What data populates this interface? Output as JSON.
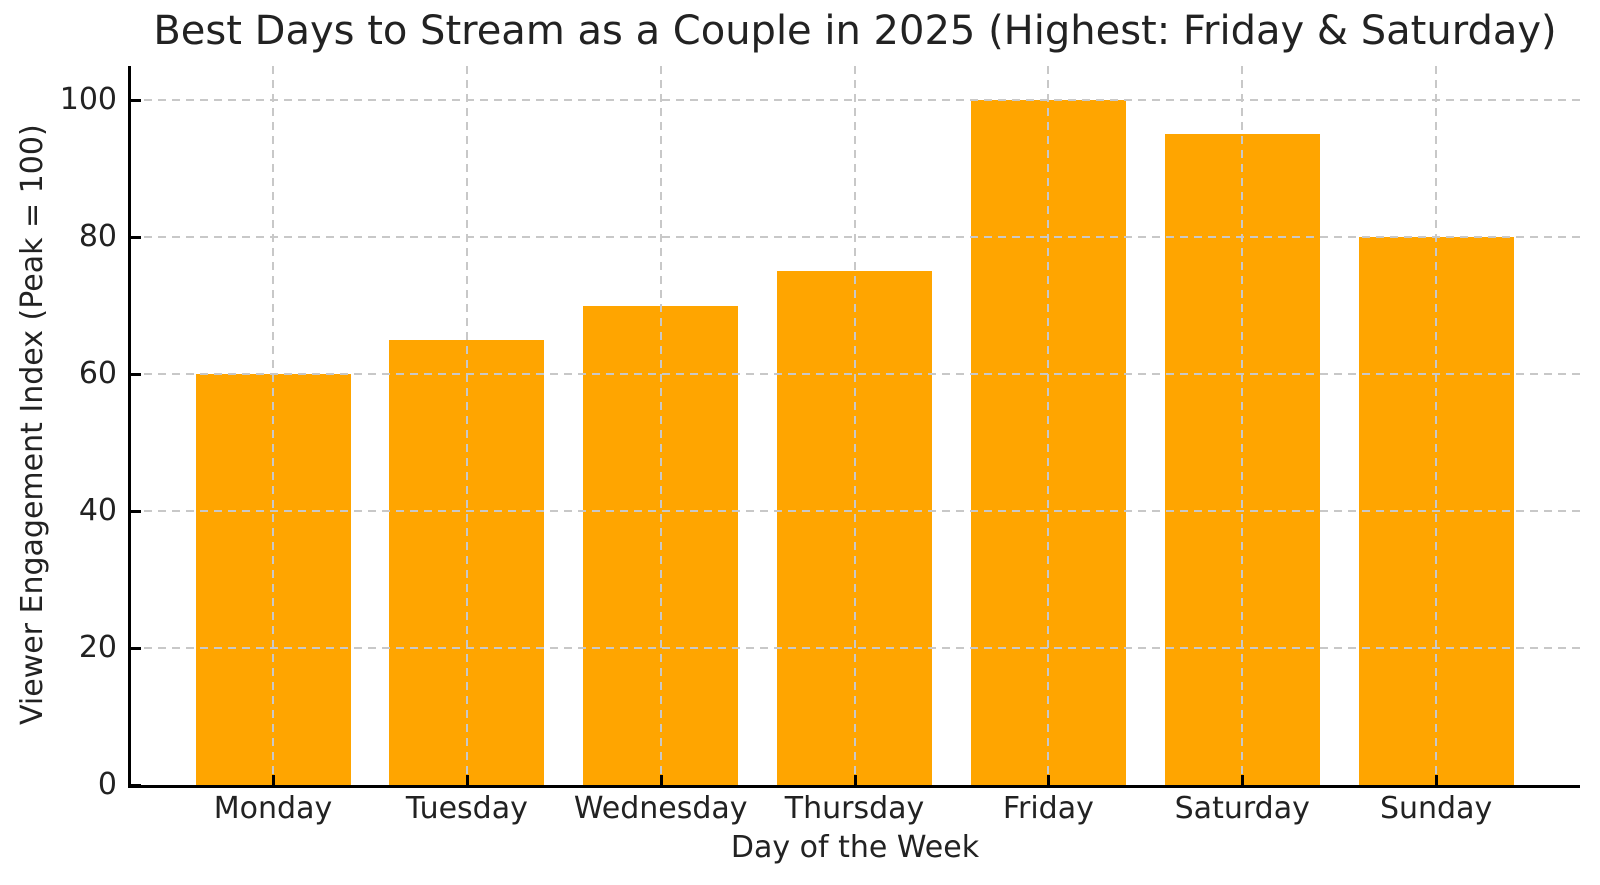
{
  "chart_data": {
    "type": "bar",
    "title": "Best Days to Stream as a Couple in 2025 (Highest: Friday & Saturday)",
    "xlabel": "Day of the Week",
    "ylabel": "Viewer Engagement Index (Peak = 100)",
    "categories": [
      "Monday",
      "Tuesday",
      "Wednesday",
      "Thursday",
      "Friday",
      "Saturday",
      "Sunday"
    ],
    "values": [
      60,
      65,
      70,
      75,
      100,
      95,
      80
    ],
    "yticks": [
      0,
      20,
      40,
      60,
      80,
      100
    ],
    "ylim": [
      0,
      105
    ],
    "grid": true,
    "grid_style": "dashed",
    "legend": "none",
    "bar_color": "#FFA500",
    "grid_color": "#c8c8c8",
    "axis_color": "#000000",
    "text_color": "#222222",
    "background_color": "#ffffff"
  }
}
